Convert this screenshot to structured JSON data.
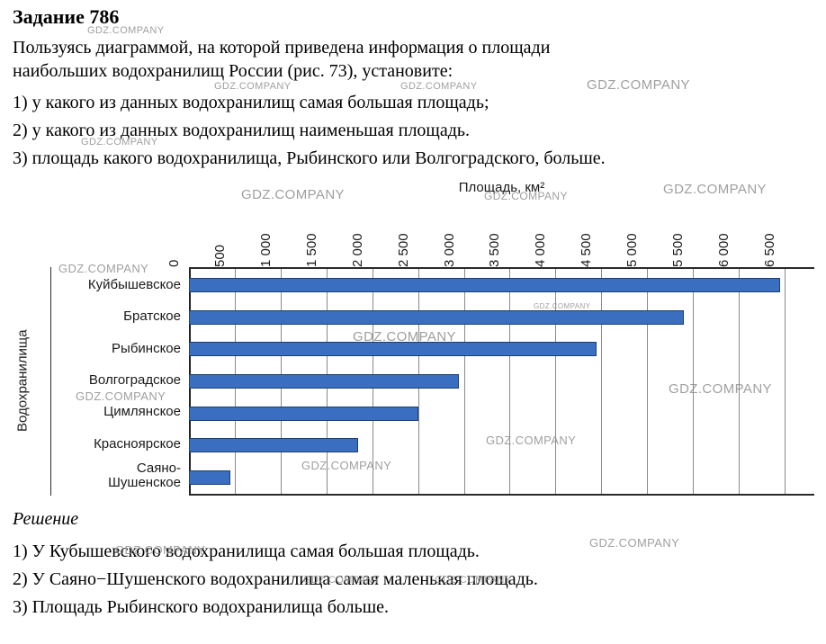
{
  "task": {
    "title": "Задание 786",
    "intro": [
      "Пользуясь диаграммой, на которой приведена информация о площади",
      "наибольших водохранилищ России (рис. 73), установите:"
    ],
    "items": [
      "1) у какого из данных водохранилищ самая большая площадь;",
      "2) у какого из данных водохранилищ наименьшая площадь.",
      "3) площадь какого водохранилища, Рыбинского или Волгоградского, больше."
    ]
  },
  "chart_data": {
    "type": "bar",
    "orientation": "horizontal",
    "title": "Площадь, км²",
    "xlabel": "Площадь, км²",
    "ylabel": "Водохранилища",
    "categories": [
      "Куйбышевское",
      "Братское",
      "Рыбинское",
      "Волгоградское",
      "Цимлянское",
      "Красноярское",
      "Саяно-\nШушенское"
    ],
    "values": [
      6450,
      5400,
      4450,
      2950,
      2500,
      1850,
      450
    ],
    "xlim": [
      0,
      6500
    ],
    "tick_step": 500,
    "tick_labels": [
      "0",
      "500",
      "1 000",
      "1 500",
      "2 000",
      "2 500",
      "3 000",
      "3 500",
      "4 000",
      "4 500",
      "5 000",
      "5 500",
      "6 000",
      "6 500"
    ],
    "grid": true,
    "legend": "none",
    "bar_color": "#3a6ec0",
    "bar_border_color": "#1e3f73"
  },
  "solution": {
    "heading": "Решение",
    "lines": [
      "1) У Кубышевского водохранилища самая большая площадь.",
      "2) У Саяно−Шушенского водохранилища самая маленькая площадь.",
      "3) Площадь Рыбинского водохранилища больше."
    ]
  },
  "watermark": {
    "text": "GDZ.COMPANY"
  }
}
